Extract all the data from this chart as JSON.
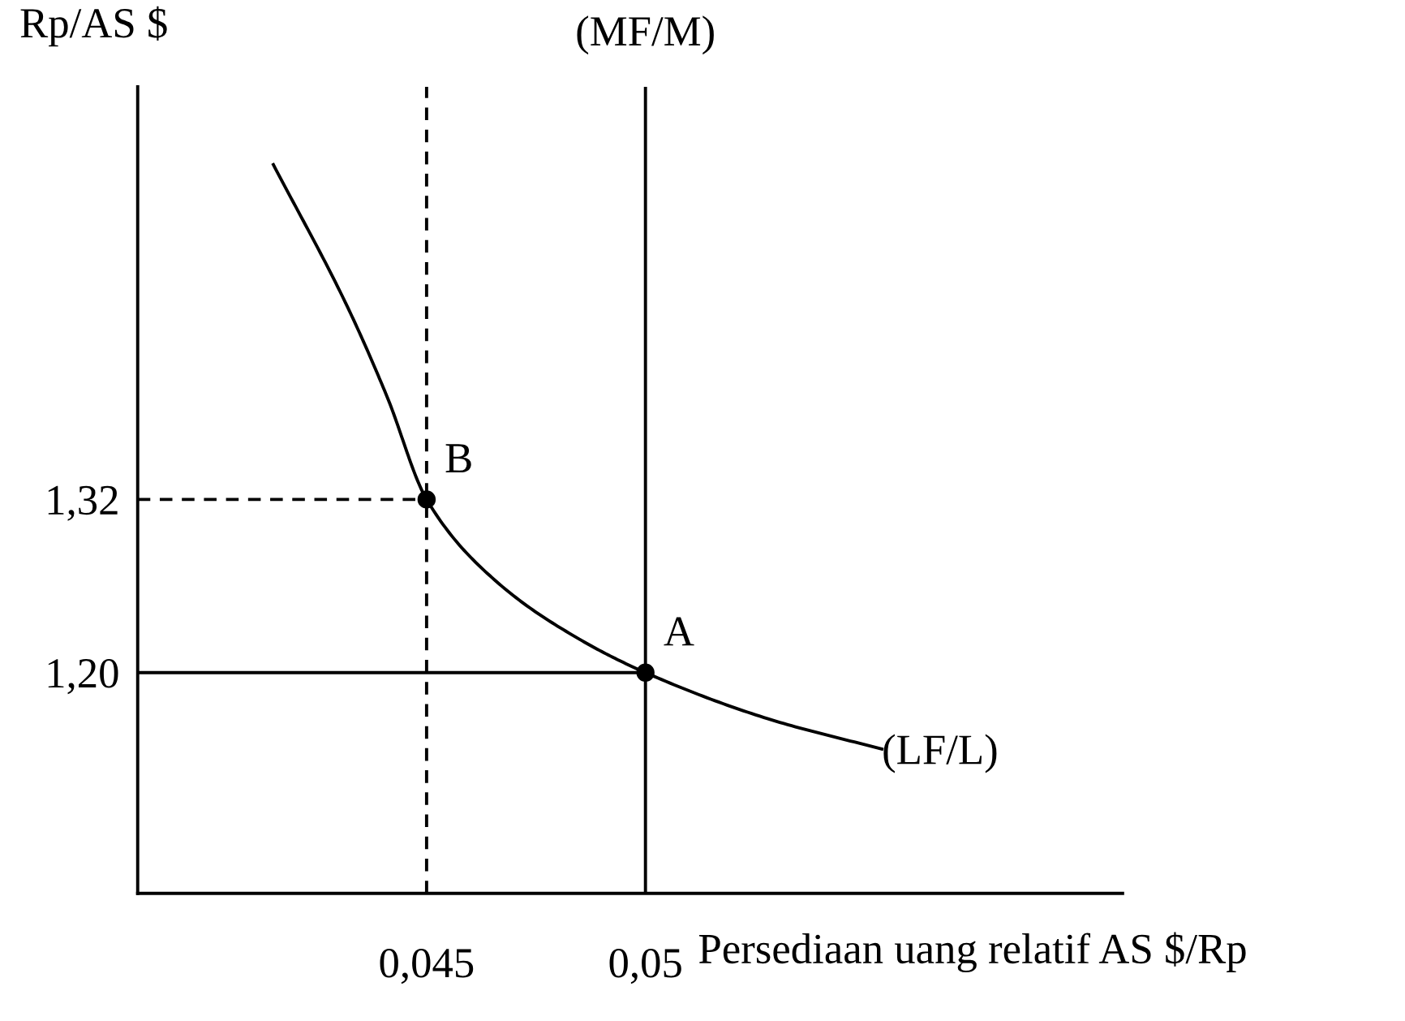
{
  "chart_data": {
    "type": "line",
    "xlabel": "Persediaan uang relatif AS $/Rp",
    "ylabel": "Rp/AS $",
    "xlim": [
      0.0384,
      0.0609
    ],
    "ylim": [
      1.047,
      1.606
    ],
    "xticks": [
      {
        "value": 0.045,
        "label": "0,045"
      },
      {
        "value": 0.05,
        "label": "0,05"
      }
    ],
    "yticks": [
      {
        "value": 1.2,
        "label": "1,20"
      },
      {
        "value": 1.32,
        "label": "1,32"
      }
    ],
    "grid": false,
    "legend": false,
    "series": [
      {
        "color": "#000000",
        "line_style": "solid",
        "x": [
          0.0415,
          0.0432,
          0.0441,
          0.045,
          0.0466,
          0.0485,
          0.05,
          0.0528,
          0.0554
        ],
        "values": [
          1.552,
          1.453,
          1.391,
          1.32,
          1.263,
          1.223,
          1.2,
          1.168,
          1.147
        ]
      },
      {
        "color": "#000000",
        "line_style": "dashed",
        "x": [
          0.0384,
          0.045
        ],
        "values": [
          1.32,
          1.32
        ]
      },
      {
        "color": "#000000",
        "line_style": "solid",
        "x": [
          0.0384,
          0.05
        ],
        "values": [
          1.2,
          1.2
        ]
      },
      {
        "type": "scatter",
        "color": "#000000",
        "marker": "circle",
        "x": [
          0.045,
          0.05
        ],
        "values": [
          1.32,
          1.2
        ]
      }
    ],
    "ref_lines": [
      {
        "axis": "x",
        "value": 0.05,
        "label": "(MF/M)",
        "color": "#000000",
        "line_style": "solid"
      },
      {
        "axis": "x",
        "value": 0.045,
        "label": null,
        "color": "#000000",
        "line_style": "dashed"
      }
    ],
    "annotations": [
      {
        "text": "B",
        "x": 0.045,
        "y": 1.32
      },
      {
        "text": "A",
        "x": 0.05,
        "y": 1.2
      },
      {
        "text": "(LF/L)",
        "x": 0.0554,
        "y": 1.147
      }
    ]
  }
}
